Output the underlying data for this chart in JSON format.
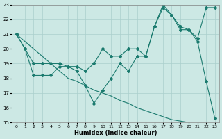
{
  "xlabel": "Humidex (Indice chaleur)",
  "line_color": "#1a7a6e",
  "bg_color": "#cce8e4",
  "grid_color": "#aacfcc",
  "xlim": [
    -0.5,
    23.5
  ],
  "ylim": [
    15,
    23
  ],
  "xticks": [
    0,
    1,
    2,
    3,
    4,
    5,
    6,
    7,
    8,
    9,
    10,
    11,
    12,
    13,
    14,
    15,
    16,
    17,
    18,
    19,
    20,
    21,
    22,
    23
  ],
  "yticks": [
    15,
    16,
    17,
    18,
    19,
    20,
    21,
    22,
    23
  ],
  "line1_x": [
    0,
    1,
    2,
    3,
    4,
    5,
    6,
    7,
    8,
    9,
    10,
    11,
    12,
    13,
    14,
    15,
    16,
    17,
    18,
    19,
    20,
    21,
    22,
    23
  ],
  "line1_y": [
    21,
    20,
    19,
    19,
    19,
    19,
    18.8,
    18.8,
    18.5,
    19,
    20,
    19.5,
    19.5,
    20,
    20,
    19.5,
    21.5,
    22.8,
    22.3,
    21.5,
    21.3,
    20.7,
    22.8,
    22.8
  ],
  "line2_x": [
    0,
    1,
    2,
    3,
    4,
    5,
    6,
    7,
    8,
    9,
    10,
    11,
    12,
    13,
    14,
    15,
    16,
    17,
    18,
    19,
    20,
    21,
    22,
    23
  ],
  "line2_y": [
    21,
    20,
    18.2,
    18.2,
    18.2,
    18.8,
    18.8,
    18.5,
    17.5,
    16.3,
    17.2,
    18,
    19,
    18.5,
    19.5,
    19.5,
    21.5,
    23,
    22.3,
    21.3,
    21.3,
    20.5,
    17.8,
    15.3
  ],
  "line3_x": [
    0,
    1,
    2,
    3,
    4,
    5,
    6,
    7,
    8,
    9,
    10,
    11,
    12,
    13,
    14,
    15,
    16,
    17,
    18,
    19,
    20,
    21,
    22,
    23
  ],
  "line3_y": [
    21,
    20.5,
    20,
    19.5,
    19,
    18.5,
    18,
    17.8,
    17.5,
    17.2,
    17,
    16.8,
    16.5,
    16.3,
    16.0,
    15.8,
    15.6,
    15.4,
    15.2,
    15.1,
    15.0,
    15.0,
    15.0,
    15.0
  ]
}
